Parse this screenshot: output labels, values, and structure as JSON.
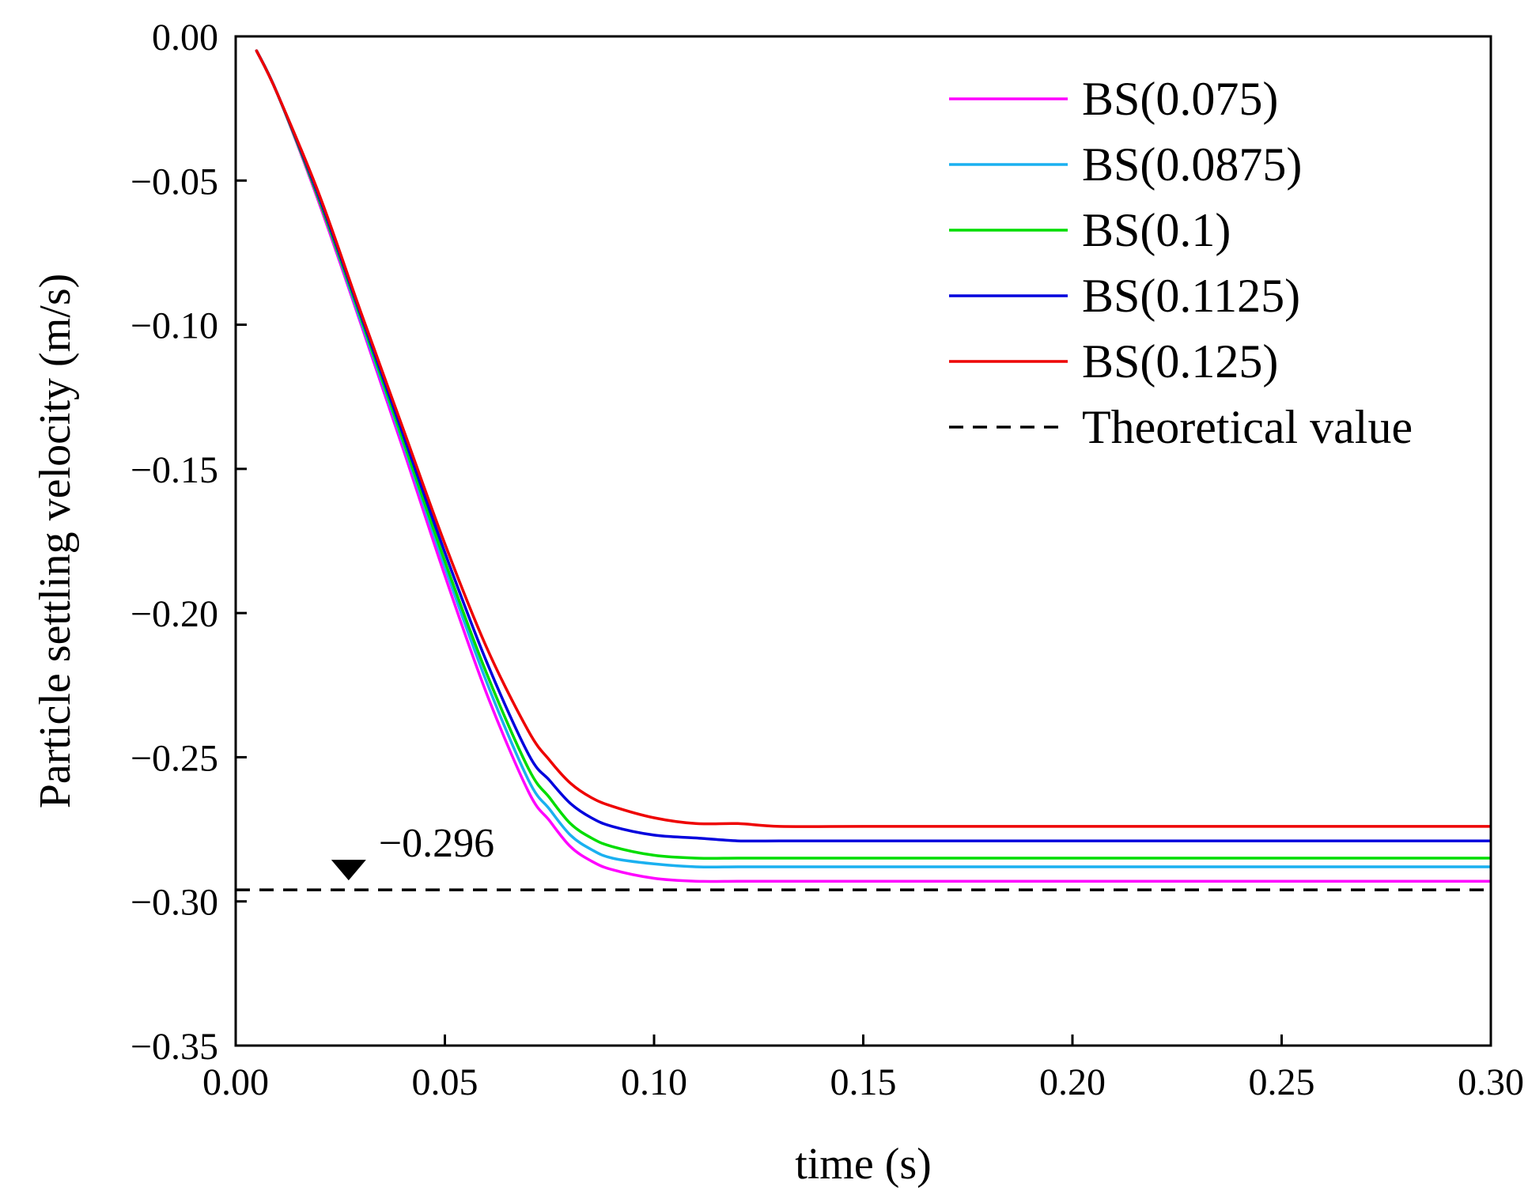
{
  "chart_data": {
    "type": "line",
    "title": "",
    "xlabel": "time (s)",
    "ylabel": "Particle settling velocity (m/s)",
    "xlim": [
      0.0,
      0.3
    ],
    "ylim": [
      -0.35,
      0.0
    ],
    "x_ticks": [
      0.0,
      0.05,
      0.1,
      0.15,
      0.2,
      0.25,
      0.3
    ],
    "x_tick_labels": [
      "0.00",
      "0.05",
      "0.10",
      "0.15",
      "0.20",
      "0.25",
      "0.30"
    ],
    "y_ticks": [
      0.0,
      -0.05,
      -0.1,
      -0.15,
      -0.2,
      -0.25,
      -0.3,
      -0.35
    ],
    "y_tick_labels": [
      "0.00",
      "−0.05",
      "−0.10",
      "−0.15",
      "−0.20",
      "−0.25",
      "−0.30",
      "−0.35"
    ],
    "grid": false,
    "legend_position": "top-right",
    "series": [
      {
        "name": "BS(0.075)",
        "color": "#ff00ff",
        "dash": "solid",
        "x": [
          0.005,
          0.01,
          0.02,
          0.03,
          0.04,
          0.05,
          0.06,
          0.07,
          0.075,
          0.08,
          0.085,
          0.09,
          0.1,
          0.11,
          0.12,
          0.13,
          0.15,
          0.2,
          0.25,
          0.3
        ],
        "y": [
          -0.005,
          -0.02,
          -0.058,
          -0.1,
          -0.143,
          -0.187,
          -0.228,
          -0.262,
          -0.272,
          -0.281,
          -0.286,
          -0.289,
          -0.292,
          -0.293,
          -0.293,
          -0.293,
          -0.293,
          -0.293,
          -0.293,
          -0.293
        ]
      },
      {
        "name": "BS(0.0875)",
        "color": "#1ab0f0",
        "dash": "solid",
        "x": [
          0.005,
          0.01,
          0.02,
          0.03,
          0.04,
          0.05,
          0.06,
          0.07,
          0.075,
          0.08,
          0.085,
          0.09,
          0.1,
          0.11,
          0.12,
          0.13,
          0.15,
          0.2,
          0.25,
          0.3
        ],
        "y": [
          -0.005,
          -0.02,
          -0.057,
          -0.099,
          -0.141,
          -0.184,
          -0.224,
          -0.258,
          -0.268,
          -0.277,
          -0.282,
          -0.285,
          -0.287,
          -0.288,
          -0.288,
          -0.288,
          -0.288,
          -0.288,
          -0.288,
          -0.288
        ]
      },
      {
        "name": "BS(0.1)",
        "color": "#00dd00",
        "dash": "solid",
        "x": [
          0.005,
          0.01,
          0.02,
          0.03,
          0.04,
          0.05,
          0.06,
          0.07,
          0.075,
          0.08,
          0.085,
          0.09,
          0.1,
          0.11,
          0.12,
          0.13,
          0.15,
          0.2,
          0.25,
          0.3
        ],
        "y": [
          -0.005,
          -0.02,
          -0.057,
          -0.098,
          -0.14,
          -0.182,
          -0.221,
          -0.254,
          -0.264,
          -0.273,
          -0.278,
          -0.281,
          -0.284,
          -0.285,
          -0.285,
          -0.285,
          -0.285,
          -0.285,
          -0.285,
          -0.285
        ]
      },
      {
        "name": "BS(0.1125)",
        "color": "#0000dd",
        "dash": "solid",
        "x": [
          0.005,
          0.01,
          0.02,
          0.03,
          0.04,
          0.05,
          0.06,
          0.07,
          0.075,
          0.08,
          0.085,
          0.09,
          0.1,
          0.11,
          0.12,
          0.13,
          0.15,
          0.2,
          0.25,
          0.3
        ],
        "y": [
          -0.005,
          -0.02,
          -0.056,
          -0.097,
          -0.138,
          -0.179,
          -0.217,
          -0.249,
          -0.258,
          -0.266,
          -0.271,
          -0.274,
          -0.277,
          -0.278,
          -0.279,
          -0.279,
          -0.279,
          -0.279,
          -0.279,
          -0.279
        ]
      },
      {
        "name": "BS(0.125)",
        "color": "#ee0000",
        "dash": "solid",
        "x": [
          0.005,
          0.01,
          0.02,
          0.03,
          0.04,
          0.05,
          0.06,
          0.07,
          0.075,
          0.08,
          0.085,
          0.09,
          0.1,
          0.11,
          0.12,
          0.13,
          0.15,
          0.2,
          0.25,
          0.3
        ],
        "y": [
          -0.005,
          -0.02,
          -0.055,
          -0.096,
          -0.136,
          -0.176,
          -0.212,
          -0.241,
          -0.251,
          -0.259,
          -0.264,
          -0.267,
          -0.271,
          -0.273,
          -0.273,
          -0.274,
          -0.274,
          -0.274,
          -0.274,
          -0.274
        ]
      },
      {
        "name": "Theoretical value",
        "color": "#000000",
        "dash": "dashed",
        "x": [
          0.0,
          0.3
        ],
        "y": [
          -0.296,
          -0.296
        ]
      }
    ],
    "annotations": [
      {
        "text": "−0.296",
        "x": 0.027,
        "y": -0.296,
        "marker": "down-triangle"
      }
    ]
  }
}
